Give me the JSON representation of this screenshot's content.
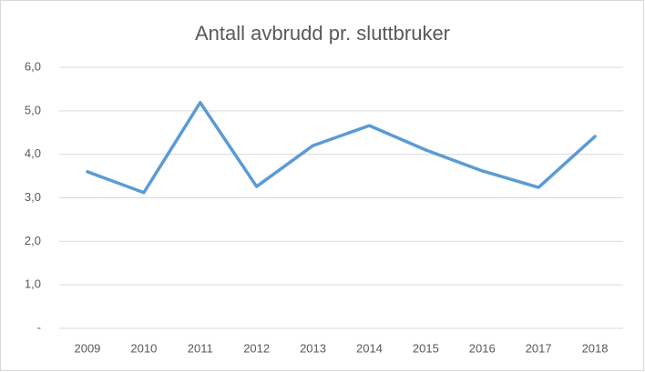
{
  "chart_data": {
    "type": "line",
    "title": "Antall avbrudd pr. sluttbruker",
    "categories": [
      "2009",
      "2010",
      "2011",
      "2012",
      "2013",
      "2014",
      "2015",
      "2016",
      "2017",
      "2018"
    ],
    "values": [
      3.6,
      3.12,
      5.19,
      3.26,
      4.2,
      4.66,
      4.1,
      3.62,
      3.24,
      4.41
    ],
    "color": "#5b9bd5",
    "ylim": [
      0,
      6
    ],
    "yticks": [
      {
        "value": 0,
        "label": "-"
      },
      {
        "value": 1,
        "label": "1,0"
      },
      {
        "value": 2,
        "label": "2,0"
      },
      {
        "value": 3,
        "label": "3,0"
      },
      {
        "value": 4,
        "label": "4,0"
      },
      {
        "value": 5,
        "label": "5,0"
      },
      {
        "value": 6,
        "label": "6,0"
      }
    ],
    "grid": true
  }
}
